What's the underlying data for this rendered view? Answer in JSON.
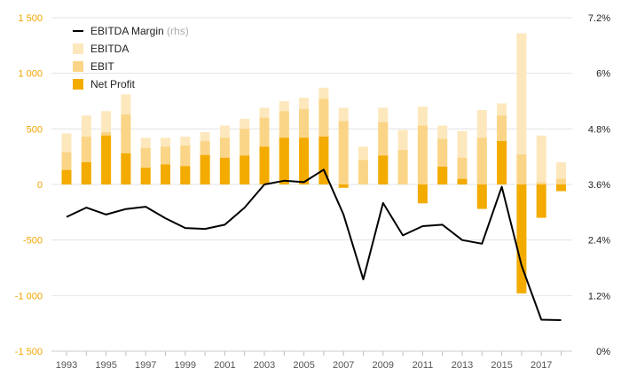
{
  "chart_data": {
    "type": "bar",
    "years": [
      1993,
      1994,
      1995,
      1996,
      1997,
      1998,
      1999,
      2000,
      2001,
      2002,
      2003,
      2004,
      2005,
      2006,
      2007,
      2008,
      2009,
      2010,
      2011,
      2012,
      2013,
      2014,
      2015,
      2016,
      2017,
      2018
    ],
    "x_tick_labels": [
      "1993",
      "1995",
      "1997",
      "1999",
      "2001",
      "2003",
      "2005",
      "2007",
      "2009",
      "2011",
      "2013",
      "2015",
      "2017"
    ],
    "left_axis": {
      "ylim": [
        -1500,
        1500
      ],
      "ticks": [
        -1500,
        -1000,
        -500,
        0,
        500,
        1000,
        1500
      ],
      "tick_labels": [
        "-1 500",
        "-1 000",
        "-500",
        "0",
        "500",
        "1 000",
        "1 500"
      ],
      "color": "#f0a500"
    },
    "right_axis": {
      "ylim": [
        0,
        7.2
      ],
      "ticks": [
        0,
        1.2,
        2.4,
        3.6,
        4.8,
        6.0,
        7.2
      ],
      "tick_labels": [
        "0%",
        "1.2%",
        "2.4%",
        "3.6%",
        "4.8%",
        "6%",
        "7.2%"
      ]
    },
    "series": [
      {
        "name": "EBITDA",
        "kind": "bar",
        "color": "#fde8bd",
        "values": [
          460,
          620,
          660,
          810,
          420,
          420,
          430,
          470,
          530,
          590,
          690,
          750,
          780,
          870,
          690,
          340,
          690,
          490,
          700,
          530,
          480,
          670,
          730,
          1360,
          440,
          200
        ]
      },
      {
        "name": "EBIT",
        "kind": "bar",
        "color": "#fbd587",
        "values": [
          290,
          430,
          470,
          630,
          330,
          340,
          350,
          390,
          420,
          500,
          600,
          660,
          680,
          770,
          570,
          220,
          560,
          310,
          530,
          410,
          240,
          420,
          620,
          270,
          20,
          50
        ]
      },
      {
        "name": "Net Profit",
        "kind": "bar",
        "color": "#f3ab00",
        "values": [
          130,
          200,
          440,
          280,
          150,
          180,
          165,
          265,
          240,
          260,
          340,
          420,
          420,
          430,
          -30,
          0,
          260,
          0,
          -170,
          160,
          50,
          -220,
          390,
          -980,
          -300,
          -60
        ]
      },
      {
        "name": "EBITDA Margin",
        "name_suffix": "(rhs)",
        "kind": "line",
        "axis": "right",
        "color": "#000000",
        "values": [
          2.9,
          3.1,
          2.95,
          3.07,
          3.12,
          2.87,
          2.66,
          2.64,
          2.73,
          3.1,
          3.6,
          3.68,
          3.65,
          3.92,
          2.95,
          1.55,
          3.2,
          2.5,
          2.7,
          2.73,
          2.4,
          2.32,
          3.55,
          1.85,
          0.68,
          0.67
        ]
      }
    ],
    "legend_position": "top-left",
    "grid": true
  }
}
